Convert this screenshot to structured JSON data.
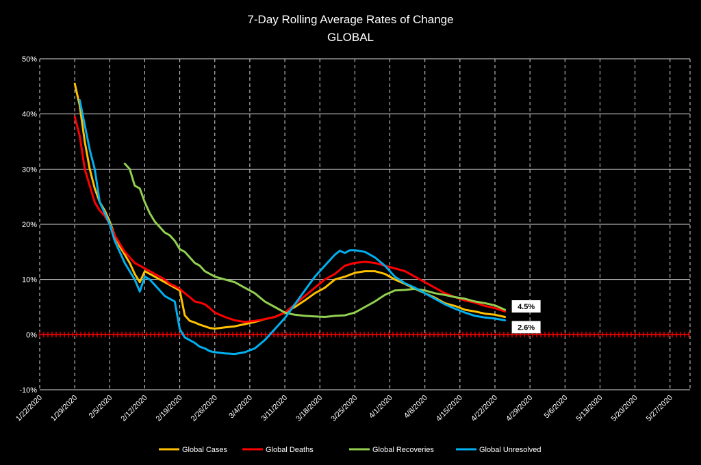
{
  "chart_data": {
    "type": "line",
    "title": "7-Day Rolling Average Rates of Change",
    "subtitle": "GLOBAL",
    "xlabel": "",
    "ylabel": "",
    "ylim": [
      -10,
      50
    ],
    "y_ticks": [
      "-10%",
      "0%",
      "10%",
      "20%",
      "30%",
      "40%",
      "50%"
    ],
    "y_tick_values": [
      -10,
      0,
      10,
      20,
      30,
      40,
      50
    ],
    "x_range": [
      "1/22/2020",
      "5/31/2020"
    ],
    "x_ticks": [
      "1/22/2020",
      "1/29/2020",
      "2/5/2020",
      "2/12/2020",
      "2/19/2020",
      "2/26/2020",
      "3/4/2020",
      "3/11/2020",
      "3/18/2020",
      "3/25/2020",
      "4/1/2020",
      "4/8/2020",
      "4/15/2020",
      "4/22/2020",
      "4/29/2020",
      "5/6/2020",
      "5/13/2020",
      "5/20/2020",
      "5/27/2020"
    ],
    "grid": true,
    "legend_position": "bottom",
    "zero_line_color": "#ff0000",
    "series": [
      {
        "name": "Global Cases",
        "color": "#ffc000",
        "points": [
          [
            "1/29/2020",
            45.5
          ],
          [
            "1/30/2020",
            41.5
          ],
          [
            "1/31/2020",
            35
          ],
          [
            "2/1/2020",
            30
          ],
          [
            "2/2/2020",
            26.5
          ],
          [
            "2/3/2020",
            24
          ],
          [
            "2/4/2020",
            22.5
          ],
          [
            "2/5/2020",
            20.5
          ],
          [
            "2/6/2020",
            18
          ],
          [
            "2/7/2020",
            16
          ],
          [
            "2/8/2020",
            14.5
          ],
          [
            "2/9/2020",
            13
          ],
          [
            "2/10/2020",
            11
          ],
          [
            "2/11/2020",
            9.5
          ],
          [
            "2/12/2020",
            11.5
          ],
          [
            "2/13/2020",
            11
          ],
          [
            "2/14/2020",
            10.5
          ],
          [
            "2/15/2020",
            10
          ],
          [
            "2/16/2020",
            9.5
          ],
          [
            "2/17/2020",
            9
          ],
          [
            "2/18/2020",
            8.5
          ],
          [
            "2/19/2020",
            8
          ],
          [
            "2/20/2020",
            3.5
          ],
          [
            "2/21/2020",
            2.5
          ],
          [
            "2/22/2020",
            2.2
          ],
          [
            "2/23/2020",
            1.8
          ],
          [
            "2/24/2020",
            1.5
          ],
          [
            "2/25/2020",
            1.2
          ],
          [
            "2/26/2020",
            1.1
          ],
          [
            "2/27/2020",
            1.2
          ],
          [
            "2/28/2020",
            1.3
          ],
          [
            "3/1/2020",
            1.5
          ],
          [
            "3/3/2020",
            1.9
          ],
          [
            "3/5/2020",
            2.3
          ],
          [
            "3/7/2020",
            2.8
          ],
          [
            "3/9/2020",
            3.2
          ],
          [
            "3/11/2020",
            4
          ],
          [
            "3/13/2020",
            5
          ],
          [
            "3/15/2020",
            6.2
          ],
          [
            "3/17/2020",
            7.5
          ],
          [
            "3/19/2020",
            8.5
          ],
          [
            "3/21/2020",
            10
          ],
          [
            "3/23/2020",
            10.5
          ],
          [
            "3/25/2020",
            11.2
          ],
          [
            "3/27/2020",
            11.5
          ],
          [
            "3/29/2020",
            11.5
          ],
          [
            "3/31/2020",
            11
          ],
          [
            "4/2/2020",
            10
          ],
          [
            "4/4/2020",
            9.2
          ],
          [
            "4/6/2020",
            8.3
          ],
          [
            "4/8/2020",
            7.5
          ],
          [
            "4/10/2020",
            6.7
          ],
          [
            "4/12/2020",
            5.7
          ],
          [
            "4/14/2020",
            5.2
          ],
          [
            "4/16/2020",
            4.5
          ],
          [
            "4/18/2020",
            4.2
          ],
          [
            "4/20/2020",
            3.8
          ],
          [
            "4/22/2020",
            3.6
          ],
          [
            "4/24/2020",
            3.2
          ]
        ]
      },
      {
        "name": "Global Deaths",
        "color": "#ff0000",
        "points": [
          [
            "1/29/2020",
            39.5
          ],
          [
            "1/30/2020",
            36
          ],
          [
            "1/31/2020",
            30
          ],
          [
            "2/1/2020",
            27
          ],
          [
            "2/2/2020",
            24
          ],
          [
            "2/3/2020",
            22.5
          ],
          [
            "2/4/2020",
            21.5
          ],
          [
            "2/5/2020",
            20
          ],
          [
            "2/6/2020",
            18
          ],
          [
            "2/7/2020",
            16.5
          ],
          [
            "2/8/2020",
            15
          ],
          [
            "2/9/2020",
            14
          ],
          [
            "2/10/2020",
            13
          ],
          [
            "2/11/2020",
            12.5
          ],
          [
            "2/12/2020",
            12
          ],
          [
            "2/13/2020",
            11.5
          ],
          [
            "2/14/2020",
            11
          ],
          [
            "2/15/2020",
            10.5
          ],
          [
            "2/16/2020",
            10
          ],
          [
            "2/17/2020",
            9.2
          ],
          [
            "2/18/2020",
            8.8
          ],
          [
            "2/19/2020",
            8.3
          ],
          [
            "2/20/2020",
            7.5
          ],
          [
            "2/21/2020",
            6.8
          ],
          [
            "2/22/2020",
            6
          ],
          [
            "2/23/2020",
            5.8
          ],
          [
            "2/24/2020",
            5.5
          ],
          [
            "2/25/2020",
            4.8
          ],
          [
            "2/26/2020",
            4
          ],
          [
            "2/28/2020",
            3.2
          ],
          [
            "3/1/2020",
            2.6
          ],
          [
            "3/3/2020",
            2.3
          ],
          [
            "3/5/2020",
            2.5
          ],
          [
            "3/7/2020",
            2.8
          ],
          [
            "3/9/2020",
            3.2
          ],
          [
            "3/11/2020",
            4
          ],
          [
            "3/13/2020",
            5.5
          ],
          [
            "3/15/2020",
            7
          ],
          [
            "3/17/2020",
            8.5
          ],
          [
            "3/19/2020",
            10
          ],
          [
            "3/21/2020",
            11
          ],
          [
            "3/23/2020",
            12.5
          ],
          [
            "3/25/2020",
            13
          ],
          [
            "3/27/2020",
            13.2
          ],
          [
            "3/29/2020",
            13
          ],
          [
            "3/31/2020",
            12.5
          ],
          [
            "4/2/2020",
            12
          ],
          [
            "4/4/2020",
            11.5
          ],
          [
            "4/6/2020",
            10.5
          ],
          [
            "4/8/2020",
            9.5
          ],
          [
            "4/10/2020",
            8.5
          ],
          [
            "4/12/2020",
            7.5
          ],
          [
            "4/14/2020",
            6.8
          ],
          [
            "4/16/2020",
            6.2
          ],
          [
            "4/18/2020",
            5.8
          ],
          [
            "4/20/2020",
            5.2
          ],
          [
            "4/22/2020",
            4.8
          ],
          [
            "4/24/2020",
            4.2
          ]
        ]
      },
      {
        "name": "Global Recoveries",
        "color": "#92d050",
        "points": [
          [
            "2/8/2020",
            31
          ],
          [
            "2/9/2020",
            30
          ],
          [
            "2/10/2020",
            27
          ],
          [
            "2/11/2020",
            26.5
          ],
          [
            "2/12/2020",
            24
          ],
          [
            "2/13/2020",
            22
          ],
          [
            "2/14/2020",
            20.5
          ],
          [
            "2/15/2020",
            19.5
          ],
          [
            "2/16/2020",
            18.5
          ],
          [
            "2/17/2020",
            18
          ],
          [
            "2/18/2020",
            17
          ],
          [
            "2/19/2020",
            15.5
          ],
          [
            "2/20/2020",
            15
          ],
          [
            "2/21/2020",
            14
          ],
          [
            "2/22/2020",
            13
          ],
          [
            "2/23/2020",
            12.5
          ],
          [
            "2/24/2020",
            11.5
          ],
          [
            "2/25/2020",
            11
          ],
          [
            "2/26/2020",
            10.5
          ],
          [
            "2/28/2020",
            10
          ],
          [
            "3/1/2020",
            9.5
          ],
          [
            "3/3/2020",
            8.5
          ],
          [
            "3/5/2020",
            7.5
          ],
          [
            "3/7/2020",
            6
          ],
          [
            "3/9/2020",
            5
          ],
          [
            "3/11/2020",
            4
          ],
          [
            "3/13/2020",
            3.6
          ],
          [
            "3/15/2020",
            3.4
          ],
          [
            "3/17/2020",
            3.3
          ],
          [
            "3/19/2020",
            3.2
          ],
          [
            "3/21/2020",
            3.4
          ],
          [
            "3/23/2020",
            3.5
          ],
          [
            "3/25/2020",
            4
          ],
          [
            "3/27/2020",
            5
          ],
          [
            "3/29/2020",
            6
          ],
          [
            "3/31/2020",
            7.2
          ],
          [
            "4/2/2020",
            8
          ],
          [
            "4/4/2020",
            8.1
          ],
          [
            "4/6/2020",
            8.3
          ],
          [
            "4/8/2020",
            8
          ],
          [
            "4/10/2020",
            7.5
          ],
          [
            "4/12/2020",
            7.2
          ],
          [
            "4/14/2020",
            6.8
          ],
          [
            "4/16/2020",
            6.5
          ],
          [
            "4/18/2020",
            6
          ],
          [
            "4/20/2020",
            5.7
          ],
          [
            "4/22/2020",
            5.3
          ],
          [
            "4/24/2020",
            4.5
          ]
        ]
      },
      {
        "name": "Global Unresolved",
        "color": "#00b0f0",
        "points": [
          [
            "1/30/2020",
            42.5
          ],
          [
            "1/31/2020",
            38
          ],
          [
            "2/1/2020",
            33.5
          ],
          [
            "2/2/2020",
            30
          ],
          [
            "2/3/2020",
            24
          ],
          [
            "2/4/2020",
            22
          ],
          [
            "2/5/2020",
            20
          ],
          [
            "2/6/2020",
            17
          ],
          [
            "2/7/2020",
            15
          ],
          [
            "2/8/2020",
            13
          ],
          [
            "2/9/2020",
            11.5
          ],
          [
            "2/10/2020",
            10
          ],
          [
            "2/11/2020",
            7.8
          ],
          [
            "2/12/2020",
            10.5
          ],
          [
            "2/13/2020",
            10
          ],
          [
            "2/14/2020",
            9
          ],
          [
            "2/15/2020",
            8
          ],
          [
            "2/16/2020",
            7
          ],
          [
            "2/17/2020",
            6.5
          ],
          [
            "2/18/2020",
            6
          ],
          [
            "2/19/2020",
            1
          ],
          [
            "2/20/2020",
            -0.5
          ],
          [
            "2/21/2020",
            -1
          ],
          [
            "2/22/2020",
            -1.5
          ],
          [
            "2/23/2020",
            -2.2
          ],
          [
            "2/24/2020",
            -2.5
          ],
          [
            "2/25/2020",
            -3
          ],
          [
            "2/26/2020",
            -3.2
          ],
          [
            "2/28/2020",
            -3.4
          ],
          [
            "3/1/2020",
            -3.5
          ],
          [
            "3/3/2020",
            -3.2
          ],
          [
            "3/5/2020",
            -2.5
          ],
          [
            "3/7/2020",
            -1
          ],
          [
            "3/9/2020",
            1
          ],
          [
            "3/11/2020",
            3
          ],
          [
            "3/13/2020",
            5.5
          ],
          [
            "3/15/2020",
            8
          ],
          [
            "3/17/2020",
            10.5
          ],
          [
            "3/19/2020",
            12.5
          ],
          [
            "3/21/2020",
            14.5
          ],
          [
            "3/22/2020",
            15.2
          ],
          [
            "3/23/2020",
            14.8
          ],
          [
            "3/24/2020",
            15.3
          ],
          [
            "3/25/2020",
            15.3
          ],
          [
            "3/27/2020",
            15
          ],
          [
            "3/29/2020",
            14
          ],
          [
            "3/31/2020",
            12.5
          ],
          [
            "4/2/2020",
            10.5
          ],
          [
            "4/4/2020",
            9.3
          ],
          [
            "4/6/2020",
            8.5
          ],
          [
            "4/8/2020",
            7.5
          ],
          [
            "4/10/2020",
            6.5
          ],
          [
            "4/12/2020",
            5.5
          ],
          [
            "4/14/2020",
            4.7
          ],
          [
            "4/16/2020",
            4
          ],
          [
            "4/18/2020",
            3.4
          ],
          [
            "4/20/2020",
            3.1
          ],
          [
            "4/22/2020",
            2.9
          ],
          [
            "4/24/2020",
            2.6
          ]
        ]
      }
    ],
    "annotations": [
      {
        "text": "4.5%",
        "x": "4/24/2020",
        "y": 4.5
      },
      {
        "text": "2.6%",
        "x": "4/24/2020",
        "y": 2.6
      }
    ]
  }
}
